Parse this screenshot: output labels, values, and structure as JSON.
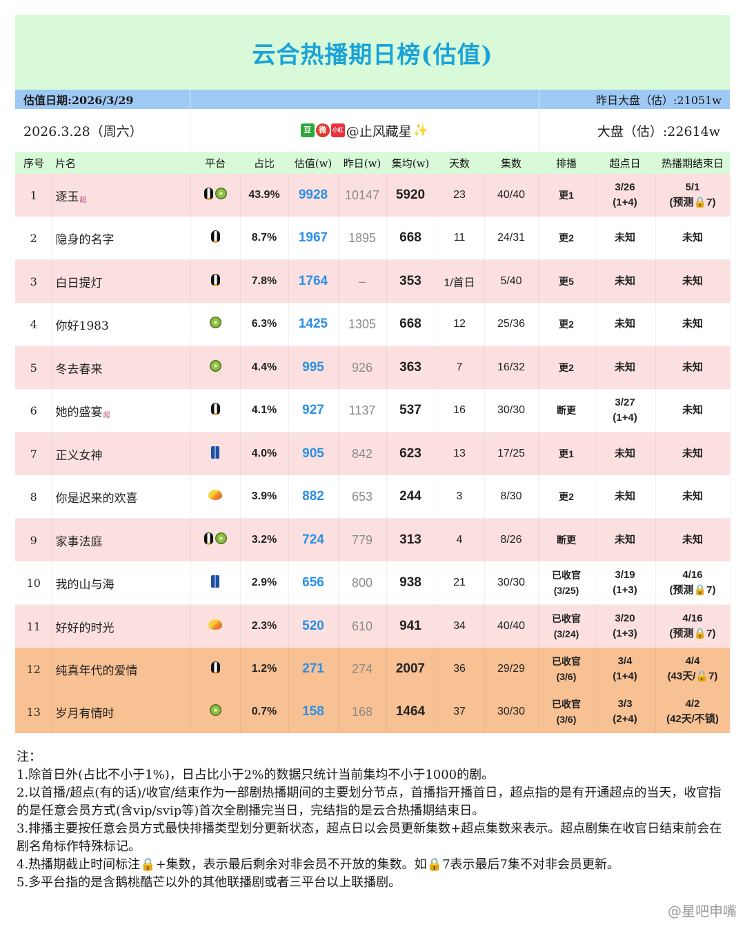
{
  "title": "云合热播期日榜(估值)",
  "date_band": {
    "left": "估值日期:2026/3/29",
    "right": "昨日大盘（估）:21051w"
  },
  "info_band": {
    "left": "2026.3.28（周六）",
    "center_badges": [
      "豆",
      "微",
      "小红书"
    ],
    "center_handle": "@止风藏星",
    "right": "大盘（估）:22614w"
  },
  "headers": [
    "序号",
    "片名",
    "平台",
    "占比",
    "估值(w)",
    "昨日(w)",
    "集均(w)",
    "天数",
    "集数",
    "排播",
    "超点日",
    "热播期结束日"
  ],
  "rows": [
    {
      "rank": "1",
      "name": "逐玉",
      "tag": "超",
      "platforms": [
        "penguin",
        "kiwi"
      ],
      "share": "43.9%",
      "est": "9928",
      "prev": "10147",
      "avg": "5920",
      "days": "23",
      "eps": "40/40",
      "sched": "更1",
      "sched2": "",
      "peak": "3/26",
      "peak2": "(1+4)",
      "end": "5/1",
      "end2": "(预测🔒7)",
      "bg": "pink"
    },
    {
      "rank": "2",
      "name": "隐身的名字",
      "tag": "",
      "platforms": [
        "penguin"
      ],
      "share": "8.7%",
      "est": "1967",
      "prev": "1895",
      "avg": "668",
      "days": "11",
      "eps": "24/31",
      "sched": "更2",
      "sched2": "",
      "peak": "未知",
      "peak2": "",
      "end": "未知",
      "end2": "",
      "bg": "white"
    },
    {
      "rank": "3",
      "name": "白日提灯",
      "tag": "",
      "platforms": [
        "penguin"
      ],
      "share": "7.8%",
      "est": "1764",
      "prev": "–",
      "avg": "353",
      "days": "1/首日",
      "eps": "5/40",
      "sched": "更5",
      "sched2": "",
      "peak": "未知",
      "peak2": "",
      "end": "未知",
      "end2": "",
      "bg": "pink"
    },
    {
      "rank": "4",
      "name": "你好1983",
      "tag": "",
      "platforms": [
        "kiwi"
      ],
      "share": "6.3%",
      "est": "1425",
      "prev": "1305",
      "avg": "668",
      "days": "12",
      "eps": "25/36",
      "sched": "更2",
      "sched2": "",
      "peak": "未知",
      "peak2": "",
      "end": "未知",
      "end2": "",
      "bg": "white"
    },
    {
      "rank": "5",
      "name": "冬去春来",
      "tag": "",
      "platforms": [
        "kiwi"
      ],
      "share": "4.4%",
      "est": "995",
      "prev": "926",
      "avg": "363",
      "days": "7",
      "eps": "16/32",
      "sched": "更2",
      "sched2": "",
      "peak": "未知",
      "peak2": "",
      "end": "未知",
      "end2": "",
      "bg": "pink"
    },
    {
      "rank": "6",
      "name": "她的盛宴",
      "tag": "超",
      "platforms": [
        "penguin"
      ],
      "share": "4.1%",
      "est": "927",
      "prev": "1137",
      "avg": "537",
      "days": "16",
      "eps": "30/30",
      "sched": "断更",
      "sched2": "",
      "peak": "3/27",
      "peak2": "(1+4)",
      "end": "未知",
      "end2": "",
      "bg": "white"
    },
    {
      "rank": "7",
      "name": "正义女神",
      "tag": "",
      "platforms": [
        "jeans"
      ],
      "share": "4.0%",
      "est": "905",
      "prev": "842",
      "avg": "623",
      "days": "13",
      "eps": "17/25",
      "sched": "更1",
      "sched2": "",
      "peak": "未知",
      "peak2": "",
      "end": "未知",
      "end2": "",
      "bg": "pink"
    },
    {
      "rank": "8",
      "name": "你是迟来的欢喜",
      "tag": "",
      "platforms": [
        "mango"
      ],
      "share": "3.9%",
      "est": "882",
      "prev": "653",
      "avg": "244",
      "days": "3",
      "eps": "8/30",
      "sched": "更2",
      "sched2": "",
      "peak": "未知",
      "peak2": "",
      "end": "未知",
      "end2": "",
      "bg": "white"
    },
    {
      "rank": "9",
      "name": "家事法庭",
      "tag": "",
      "platforms": [
        "penguin",
        "kiwi"
      ],
      "share": "3.2%",
      "est": "724",
      "prev": "779",
      "avg": "313",
      "days": "4",
      "eps": "8/26",
      "sched": "断更",
      "sched2": "",
      "peak": "未知",
      "peak2": "",
      "end": "未知",
      "end2": "",
      "bg": "pink"
    },
    {
      "rank": "10",
      "name": "我的山与海",
      "tag": "",
      "platforms": [
        "jeans"
      ],
      "share": "2.9%",
      "est": "656",
      "prev": "800",
      "avg": "938",
      "days": "21",
      "eps": "30/30",
      "sched": "已收官",
      "sched2": "(3/25)",
      "peak": "3/19",
      "peak2": "(1+3)",
      "end": "4/16",
      "end2": "(预测🔒7)",
      "bg": "white"
    },
    {
      "rank": "11",
      "name": "好好的时光",
      "tag": "",
      "platforms": [
        "mango"
      ],
      "share": "2.3%",
      "est": "520",
      "prev": "610",
      "avg": "941",
      "days": "34",
      "eps": "40/40",
      "sched": "已收官",
      "sched2": "(3/24)",
      "peak": "3/20",
      "peak2": "(1+3)",
      "end": "4/16",
      "end2": "(预测🔒7)",
      "bg": "pink"
    },
    {
      "rank": "12",
      "name": "纯真年代的爱情",
      "tag": "",
      "platforms": [
        "penguin"
      ],
      "share": "1.2%",
      "est": "271",
      "prev": "274",
      "avg": "2007",
      "days": "36",
      "eps": "29/29",
      "sched": "已收官",
      "sched2": "(3/6)",
      "peak": "3/4",
      "peak2": "(1+4)",
      "end": "4/4",
      "end2": "(43天/🔒7)",
      "bg": "orange"
    },
    {
      "rank": "13",
      "name": "岁月有情时",
      "tag": "",
      "platforms": [
        "kiwi"
      ],
      "share": "0.7%",
      "est": "158",
      "prev": "168",
      "avg": "1464",
      "days": "37",
      "eps": "30/30",
      "sched": "已收官",
      "sched2": "(3/6)",
      "peak": "3/3",
      "peak2": "(2+4)",
      "end": "4/2",
      "end2": "(42天/不锁)",
      "bg": "orange"
    }
  ],
  "notes": [
    "注：",
    "1.除首日外(占比不小于1%)，日占比小于2%的数据只统计当前集均不小于1000的剧。",
    "2.以首播/超点(有的话)/收官/结束作为一部剧热播期间的主要划分节点，首播指开播首日，超点指的是有开通超点的当天，收官指的是任意会员方式(含vip/svip等)首次全剧播完当日，完结指的是云合热播期结束日。",
    "3.排播主要按任意会员方式最快排播类型划分更新状态，超点日以会员更新集数+超点集数来表示。超点剧集在收官日结束前会在剧名角标作特殊标记。",
    "4.热播期截止时间标注🔒+集数，表示最后剩余对非会员不开放的集数。如🔒7表示最后7集不对非会员更新。",
    "5.多平台指的是含鹅桃酷芒以外的其他联播剧或者三平台以上联播剧。"
  ],
  "watermark": "@星吧申嘴"
}
